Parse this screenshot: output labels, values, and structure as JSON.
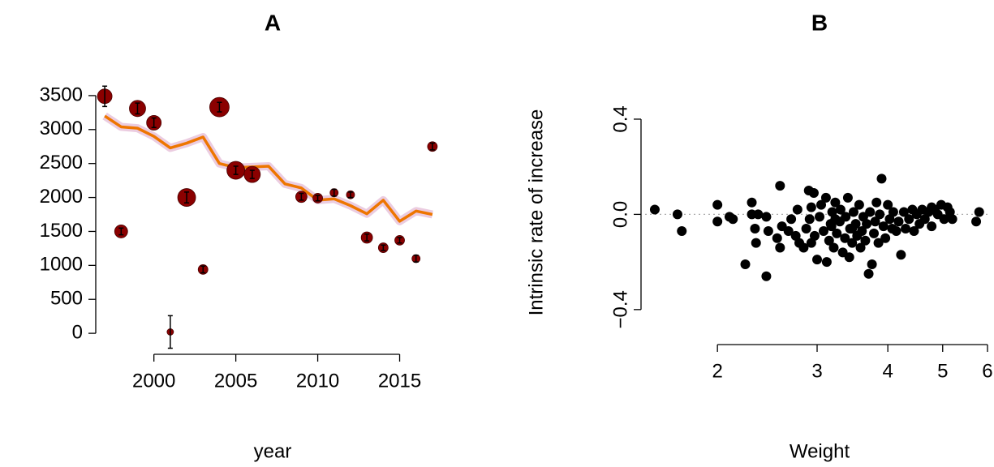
{
  "chart_data": [
    {
      "type": "mixed",
      "title": "A",
      "xlabel": "year",
      "xlim": [
        1996.5,
        2017.5
      ],
      "ylim": [
        -130,
        3690
      ],
      "xticks": [
        2000,
        2005,
        2010,
        2015
      ],
      "yticks": [
        0,
        500,
        1000,
        1500,
        2000,
        2500,
        3000,
        3500
      ],
      "series": [
        {
          "type": "bubble",
          "color": "#8b0000",
          "x": [
            1997,
            1998,
            1999,
            2000,
            2001,
            2002,
            2003,
            2004,
            2005,
            2006,
            2009,
            2010,
            2011,
            2012,
            2013,
            2014,
            2015,
            2016,
            2017
          ],
          "values": [
            3490,
            1500,
            3310,
            3100,
            20,
            2000,
            940,
            3330,
            2400,
            2340,
            2010,
            1990,
            2070,
            2040,
            1410,
            1260,
            1370,
            1100,
            2750
          ],
          "errors": [
            150,
            50,
            80,
            70,
            240,
            80,
            50,
            70,
            60,
            60,
            50,
            40,
            50,
            40,
            50,
            40,
            40,
            50,
            50
          ],
          "sizes": [
            9,
            8,
            10,
            9,
            4,
            11,
            6,
            12,
            11,
            10,
            7,
            6,
            5,
            5,
            7,
            6,
            6,
            5,
            6
          ]
        },
        {
          "type": "line",
          "color": "#ee7600",
          "band_color": "#e6bfd8",
          "x": [
            1997,
            1998,
            1999,
            2000,
            2001,
            2002,
            2003,
            2004,
            2005,
            2006,
            2007,
            2008,
            2009,
            2010,
            2011,
            2012,
            2013,
            2014,
            2015,
            2016,
            2017
          ],
          "values": [
            3200,
            3040,
            3020,
            2900,
            2730,
            2800,
            2890,
            2500,
            2440,
            2450,
            2460,
            2200,
            2140,
            1960,
            1980,
            1880,
            1760,
            1960,
            1650,
            1800,
            1750
          ]
        }
      ]
    },
    {
      "type": "scatter",
      "title": "B",
      "xlabel": "Weight",
      "ylabel": "Intrinsic rate of increase",
      "log_x": true,
      "color": "#000000",
      "hline": 0,
      "xlim": [
        1.49,
        6.06
      ],
      "ylim": [
        -0.53,
        0.56
      ],
      "xticks": [
        2,
        3,
        4,
        5,
        6
      ],
      "yticks": [
        {
          "value": -0.4,
          "label": "−0.4"
        },
        {
          "value": 0,
          "label": "0.0"
        },
        0.4
      ],
      "x": [
        1.55,
        1.7,
        1.73,
        2.0,
        2.0,
        2.1,
        2.13,
        2.24,
        2.3,
        2.3,
        2.33,
        2.34,
        2.36,
        2.44,
        2.44,
        2.46,
        2.55,
        2.58,
        2.58,
        2.6,
        2.67,
        2.7,
        2.75,
        2.77,
        2.79,
        2.84,
        2.87,
        2.9,
        2.91,
        2.93,
        2.96,
        2.97,
        3.0,
        3.03,
        3.05,
        3.08,
        3.11,
        3.12,
        3.15,
        3.17,
        3.19,
        3.21,
        3.23,
        3.25,
        3.29,
        3.3,
        3.33,
        3.36,
        3.37,
        3.4,
        3.42,
        3.43,
        3.46,
        3.48,
        3.51,
        3.53,
        3.56,
        3.58,
        3.6,
        3.62,
        3.65,
        3.67,
        3.7,
        3.72,
        3.75,
        3.78,
        3.8,
        3.82,
        3.85,
        3.87,
        3.9,
        3.93,
        3.96,
        4.0,
        4.03,
        4.07,
        4.09,
        4.14,
        4.18,
        4.22,
        4.27,
        4.3,
        4.36,
        4.42,
        4.45,
        4.5,
        4.55,
        4.6,
        4.65,
        4.72,
        4.78,
        4.84,
        4.9,
        4.97,
        5.03,
        5.1,
        5.15,
        5.2,
        5.73,
        5.8,
        4.78,
        2.93,
        3.18,
        3.46,
        3.23
      ],
      "values": [
        0.02,
        0.0,
        -0.07,
        0.04,
        -0.03,
        -0.01,
        -0.02,
        -0.21,
        0.05,
        0.0,
        -0.06,
        -0.12,
        0.0,
        -0.26,
        -0.01,
        -0.07,
        -0.1,
        0.12,
        -0.14,
        -0.05,
        -0.07,
        -0.02,
        -0.09,
        0.02,
        -0.12,
        -0.14,
        -0.06,
        0.1,
        -0.02,
        0.03,
        0.09,
        -0.09,
        -0.19,
        -0.01,
        0.04,
        -0.07,
        0.07,
        -0.2,
        -0.11,
        -0.04,
        0.01,
        -0.14,
        0.05,
        -0.08,
        -0.03,
        0.02,
        -0.16,
        -0.1,
        -0.01,
        0.07,
        -0.18,
        -0.06,
        -0.12,
        0.01,
        -0.04,
        -0.09,
        0.04,
        -0.14,
        -0.07,
        -0.01,
        -0.11,
        -0.04,
        -0.25,
        0.01,
        -0.21,
        -0.08,
        -0.03,
        0.05,
        -0.12,
        0.0,
        0.15,
        -0.05,
        -0.1,
        0.04,
        -0.02,
        -0.06,
        0.01,
        -0.07,
        -0.03,
        -0.17,
        0.01,
        -0.06,
        -0.02,
        0.02,
        -0.07,
        0.0,
        -0.04,
        0.02,
        -0.02,
        0.01,
        -0.05,
        0.02,
        0.0,
        0.04,
        -0.02,
        0.03,
        0.01,
        -0.02,
        -0.03,
        0.01,
        0.03,
        -0.12,
        -0.05,
        -0.06,
        -0.02
      ]
    }
  ]
}
